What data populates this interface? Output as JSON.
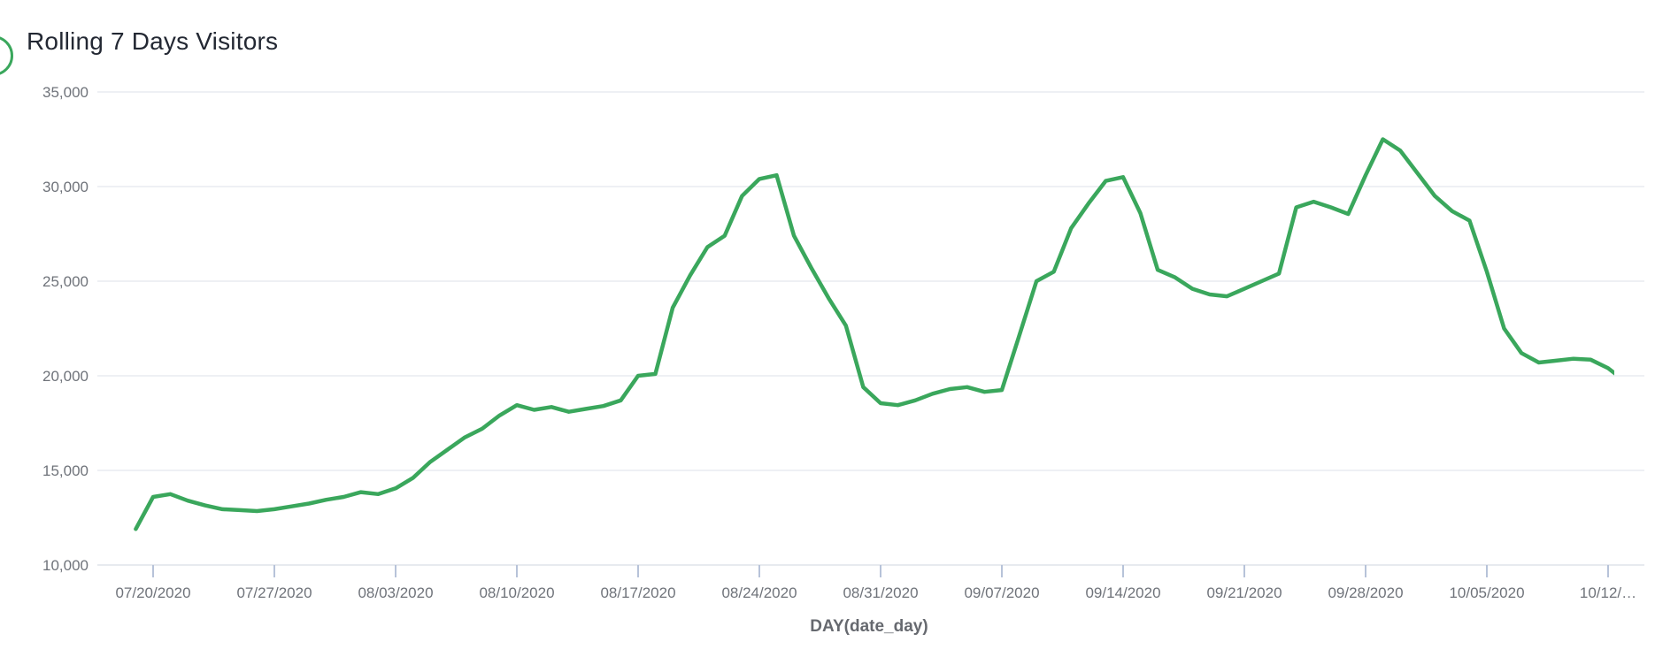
{
  "header": {
    "title": "Rolling 7 Days Visitors"
  },
  "colors": {
    "line": "#3aa75c",
    "grid": "#eef0f4",
    "axis_baseline": "#e7eaef",
    "tick_mark": "#b7c3d9",
    "axis_text": "#6f737a",
    "title_text": "#232833",
    "xlabel_text": "#66696f",
    "background": "#ffffff"
  },
  "chart_data": {
    "type": "line",
    "title": "Rolling 7 Days Visitors",
    "xlabel": "DAY(date_day)",
    "ylabel": "",
    "ylim": [
      10000,
      35000
    ],
    "grid": "horizontal",
    "legend": "none",
    "y_ticks": [
      {
        "value": 35000,
        "label": "35,000"
      },
      {
        "value": 30000,
        "label": "30,000"
      },
      {
        "value": 25000,
        "label": "25,000"
      },
      {
        "value": 20000,
        "label": "20,000"
      },
      {
        "value": 15000,
        "label": "15,000"
      },
      {
        "value": 10000,
        "label": "10,000"
      }
    ],
    "x_tick_labels": [
      "07/20/2020",
      "07/27/2020",
      "08/03/2020",
      "08/10/2020",
      "08/17/2020",
      "08/24/2020",
      "08/31/2020",
      "09/07/2020",
      "09/14/2020",
      "09/21/2020",
      "09/28/2020",
      "10/05/2020",
      "10/12/…"
    ],
    "x": [
      "07/19/2020",
      "07/20/2020",
      "07/21/2020",
      "07/22/2020",
      "07/23/2020",
      "07/24/2020",
      "07/25/2020",
      "07/26/2020",
      "07/27/2020",
      "07/28/2020",
      "07/29/2020",
      "07/30/2020",
      "07/31/2020",
      "08/01/2020",
      "08/02/2020",
      "08/03/2020",
      "08/04/2020",
      "08/05/2020",
      "08/06/2020",
      "08/07/2020",
      "08/08/2020",
      "08/09/2020",
      "08/10/2020",
      "08/11/2020",
      "08/12/2020",
      "08/13/2020",
      "08/14/2020",
      "08/15/2020",
      "08/16/2020",
      "08/17/2020",
      "08/18/2020",
      "08/19/2020",
      "08/20/2020",
      "08/21/2020",
      "08/22/2020",
      "08/23/2020",
      "08/24/2020",
      "08/25/2020",
      "08/26/2020",
      "08/27/2020",
      "08/28/2020",
      "08/29/2020",
      "08/30/2020",
      "08/31/2020",
      "09/01/2020",
      "09/02/2020",
      "09/03/2020",
      "09/04/2020",
      "09/05/2020",
      "09/06/2020",
      "09/07/2020",
      "09/08/2020",
      "09/09/2020",
      "09/10/2020",
      "09/11/2020",
      "09/12/2020",
      "09/13/2020",
      "09/14/2020",
      "09/15/2020",
      "09/16/2020",
      "09/17/2020",
      "09/18/2020",
      "09/19/2020",
      "09/20/2020",
      "09/21/2020",
      "09/22/2020",
      "09/23/2020",
      "09/24/2020",
      "09/25/2020",
      "09/26/2020",
      "09/27/2020",
      "09/28/2020",
      "09/29/2020",
      "09/30/2020",
      "10/01/2020",
      "10/02/2020",
      "10/03/2020",
      "10/04/2020",
      "10/05/2020",
      "10/06/2020",
      "10/07/2020",
      "10/08/2020",
      "10/09/2020",
      "10/10/2020",
      "10/11/2020",
      "10/12/2020",
      "10/13/2020"
    ],
    "series": [
      {
        "name": "Rolling 7 Days Visitors",
        "values": [
          11900,
          13600,
          13750,
          13400,
          13150,
          12950,
          12900,
          12850,
          12950,
          13100,
          13250,
          13450,
          13600,
          13850,
          13750,
          14050,
          14600,
          15450,
          16100,
          16750,
          17200,
          17900,
          18450,
          18200,
          18350,
          18100,
          18250,
          18400,
          18700,
          20000,
          20100,
          23600,
          25300,
          26800,
          27400,
          29500,
          30400,
          30600,
          27400,
          25700,
          24100,
          22650,
          19400,
          18550,
          18450,
          18700,
          19050,
          19300,
          19400,
          19150,
          19250,
          22100,
          25000,
          25500,
          27800,
          29100,
          30300,
          30500,
          28600,
          25600,
          25200,
          24600,
          24300,
          24200,
          24600,
          25000,
          25400,
          28900,
          29200,
          28900,
          28550,
          30600,
          32500,
          31900,
          30700,
          29500,
          28700,
          28200,
          25500,
          22500,
          21200,
          20700,
          20800,
          20900,
          20850,
          20400,
          19700
        ]
      }
    ]
  }
}
